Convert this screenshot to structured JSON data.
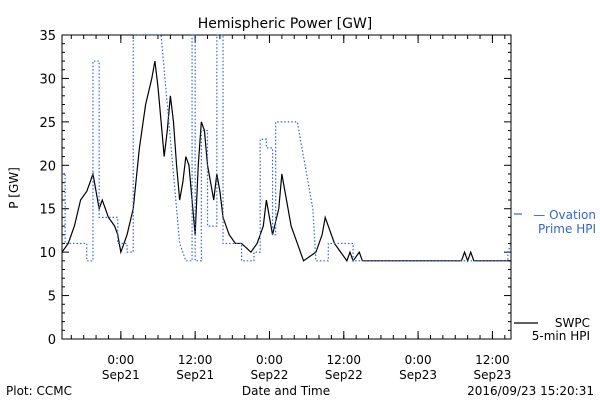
{
  "chart_data": {
    "type": "line",
    "title": "Hemispheric Power [GW]",
    "ylabel": "P [GW]",
    "xlabel": "Date and Time",
    "ylim": [
      0,
      35
    ],
    "xlim": [
      "2016-09-20 14:30",
      "2016-09-23 15:00"
    ],
    "yticks": [
      0,
      5,
      10,
      15,
      20,
      25,
      30,
      35
    ],
    "xticks": [
      {
        "t": "2016-09-21 00:00",
        "time": "0:00",
        "date": "Sep21"
      },
      {
        "t": "2016-09-21 12:00",
        "time": "12:00",
        "date": "Sep21"
      },
      {
        "t": "2016-09-22 00:00",
        "time": "0:00",
        "date": "Sep22"
      },
      {
        "t": "2016-09-22 12:00",
        "time": "12:00",
        "date": "Sep22"
      },
      {
        "t": "2016-09-23 00:00",
        "time": "0:00",
        "date": "Sep23"
      },
      {
        "t": "2016-09-23 12:00",
        "time": "12:00",
        "date": "Sep23"
      }
    ],
    "grid": false,
    "series": [
      {
        "name": "SWPC 5-min HPI",
        "label_lines": [
          "SWPC",
          "5-min HPI"
        ],
        "color": "#000000",
        "style": "solid",
        "points": [
          [
            "2016-09-20 14:30",
            10
          ],
          [
            "2016-09-20 15:30",
            11
          ],
          [
            "2016-09-20 16:30",
            13
          ],
          [
            "2016-09-20 17:30",
            16
          ],
          [
            "2016-09-20 18:30",
            17
          ],
          [
            "2016-09-20 19:30",
            19
          ],
          [
            "2016-09-20 20:00",
            17
          ],
          [
            "2016-09-20 20:30",
            15
          ],
          [
            "2016-09-20 21:00",
            16
          ],
          [
            "2016-09-20 21:30",
            15
          ],
          [
            "2016-09-20 22:00",
            14
          ],
          [
            "2016-09-20 23:00",
            13
          ],
          [
            "2016-09-20 23:30",
            12
          ],
          [
            "2016-09-21 00:00",
            10
          ],
          [
            "2016-09-21 01:00",
            12
          ],
          [
            "2016-09-21 02:00",
            15
          ],
          [
            "2016-09-21 03:00",
            22
          ],
          [
            "2016-09-21 04:00",
            27
          ],
          [
            "2016-09-21 05:00",
            30
          ],
          [
            "2016-09-21 05:30",
            32
          ],
          [
            "2016-09-21 06:00",
            29
          ],
          [
            "2016-09-21 06:30",
            25
          ],
          [
            "2016-09-21 07:00",
            21
          ],
          [
            "2016-09-21 07:30",
            24
          ],
          [
            "2016-09-21 08:00",
            28
          ],
          [
            "2016-09-21 08:30",
            25
          ],
          [
            "2016-09-21 09:00",
            20
          ],
          [
            "2016-09-21 09:30",
            16
          ],
          [
            "2016-09-21 10:00",
            18
          ],
          [
            "2016-09-21 10:30",
            21
          ],
          [
            "2016-09-21 11:00",
            20
          ],
          [
            "2016-09-21 11:30",
            16
          ],
          [
            "2016-09-21 12:00",
            12
          ],
          [
            "2016-09-21 12:30",
            20
          ],
          [
            "2016-09-21 13:00",
            25
          ],
          [
            "2016-09-21 13:30",
            24
          ],
          [
            "2016-09-21 14:00",
            20
          ],
          [
            "2016-09-21 14:30",
            18
          ],
          [
            "2016-09-21 15:00",
            16
          ],
          [
            "2016-09-21 15:30",
            19
          ],
          [
            "2016-09-21 16:00",
            17
          ],
          [
            "2016-09-21 16:30",
            14
          ],
          [
            "2016-09-21 17:30",
            12
          ],
          [
            "2016-09-21 18:30",
            11
          ],
          [
            "2016-09-21 19:30",
            11
          ],
          [
            "2016-09-21 21:00",
            10
          ],
          [
            "2016-09-21 22:00",
            11
          ],
          [
            "2016-09-21 23:00",
            13
          ],
          [
            "2016-09-21 23:30",
            16
          ],
          [
            "2016-09-22 00:00",
            14
          ],
          [
            "2016-09-22 00:30",
            12
          ],
          [
            "2016-09-22 01:30",
            15
          ],
          [
            "2016-09-22 02:00",
            19
          ],
          [
            "2016-09-22 02:30",
            17
          ],
          [
            "2016-09-22 03:30",
            13
          ],
          [
            "2016-09-22 04:30",
            11
          ],
          [
            "2016-09-22 05:30",
            9
          ],
          [
            "2016-09-22 07:30",
            10
          ],
          [
            "2016-09-22 08:30",
            12
          ],
          [
            "2016-09-22 09:00",
            14
          ],
          [
            "2016-09-22 09:30",
            13
          ],
          [
            "2016-09-22 10:30",
            11
          ],
          [
            "2016-09-22 11:30",
            10
          ],
          [
            "2016-09-22 12:30",
            9
          ],
          [
            "2016-09-22 13:00",
            10
          ],
          [
            "2016-09-22 13:30",
            9
          ],
          [
            "2016-09-22 14:30",
            10
          ],
          [
            "2016-09-22 15:00",
            9
          ],
          [
            "2016-09-23 07:00",
            9
          ],
          [
            "2016-09-23 07:30",
            10
          ],
          [
            "2016-09-23 08:00",
            9
          ],
          [
            "2016-09-23 08:30",
            10
          ],
          [
            "2016-09-23 09:00",
            9
          ],
          [
            "2016-09-23 15:00",
            9
          ]
        ]
      },
      {
        "name": "Ovation Prime HPI",
        "label_lines": [
          "— Ovation",
          "Prime HPI"
        ],
        "color": "#3366cc",
        "style": "dotted",
        "points": [
          [
            "2016-09-20 14:30",
            19
          ],
          [
            "2016-09-20 15:00",
            19
          ],
          [
            "2016-09-20 15:00",
            11
          ],
          [
            "2016-09-20 18:30",
            11
          ],
          [
            "2016-09-20 18:30",
            9
          ],
          [
            "2016-09-20 19:30",
            9
          ],
          [
            "2016-09-20 19:30",
            32
          ],
          [
            "2016-09-20 20:30",
            32
          ],
          [
            "2016-09-20 20:30",
            14
          ],
          [
            "2016-09-20 23:30",
            14
          ],
          [
            "2016-09-20 23:30",
            11
          ],
          [
            "2016-09-21 01:00",
            11
          ],
          [
            "2016-09-21 01:00",
            10
          ],
          [
            "2016-09-21 02:00",
            10
          ],
          [
            "2016-09-21 02:00",
            35
          ],
          [
            "2016-09-21 06:30",
            35
          ],
          [
            "2016-09-21 09:30",
            11
          ],
          [
            "2016-09-21 10:30",
            9
          ],
          [
            "2016-09-21 11:30",
            9
          ],
          [
            "2016-09-21 11:30",
            35
          ],
          [
            "2016-09-21 12:00",
            35
          ],
          [
            "2016-09-21 12:00",
            9
          ],
          [
            "2016-09-21 13:00",
            9
          ],
          [
            "2016-09-21 13:00",
            24
          ],
          [
            "2016-09-21 14:00",
            24
          ],
          [
            "2016-09-21 14:00",
            13
          ],
          [
            "2016-09-21 15:30",
            13
          ],
          [
            "2016-09-21 15:30",
            35
          ],
          [
            "2016-09-21 16:30",
            35
          ],
          [
            "2016-09-21 16:30",
            11
          ],
          [
            "2016-09-21 19:30",
            11
          ],
          [
            "2016-09-21 19:30",
            9
          ],
          [
            "2016-09-21 21:30",
            9
          ],
          [
            "2016-09-21 21:30",
            10
          ],
          [
            "2016-09-21 22:30",
            10
          ],
          [
            "2016-09-21 22:30",
            23
          ],
          [
            "2016-09-21 23:30",
            23
          ],
          [
            "2016-09-21 23:30",
            22
          ],
          [
            "2016-09-22 00:30",
            22
          ],
          [
            "2016-09-22 00:30",
            12
          ],
          [
            "2016-09-22 01:00",
            12
          ],
          [
            "2016-09-22 01:00",
            25
          ],
          [
            "2016-09-22 04:30",
            25
          ],
          [
            "2016-09-22 07:00",
            15
          ],
          [
            "2016-09-22 07:30",
            9
          ],
          [
            "2016-09-22 09:30",
            9
          ],
          [
            "2016-09-22 09:30",
            11
          ],
          [
            "2016-09-22 13:30",
            11
          ],
          [
            "2016-09-22 13:30",
            9
          ],
          [
            "2016-09-23 14:30",
            9
          ],
          [
            "2016-09-23 14:30",
            10
          ],
          [
            "2016-09-23 15:00",
            11
          ]
        ]
      }
    ]
  },
  "footer": {
    "left": "Plot: CCMC",
    "center": "Date and Time",
    "right": "2016/09/23 15:20:31"
  }
}
